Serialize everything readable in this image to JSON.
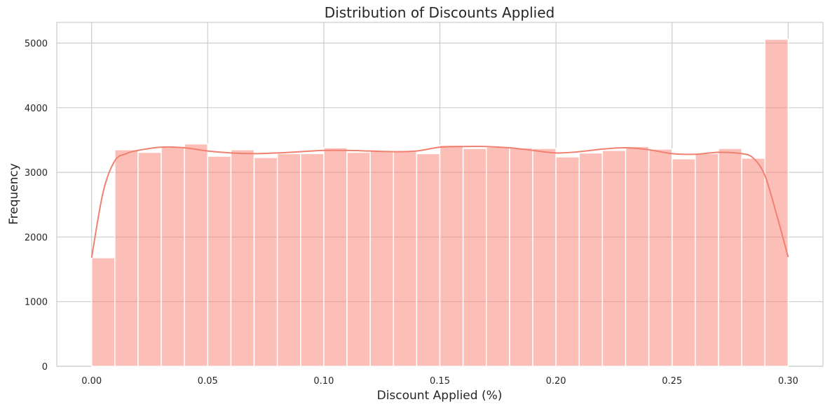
{
  "chart_data": {
    "type": "bar",
    "title": "Distribution of Discounts Applied",
    "xlabel": "Discount Applied (%)",
    "ylabel": "Frequency",
    "xlim": [
      -0.015,
      0.315
    ],
    "ylim": [
      0,
      5320
    ],
    "xticks": [
      0.0,
      0.05,
      0.1,
      0.15,
      0.2,
      0.25,
      0.3
    ],
    "xtick_labels": [
      "0.00",
      "0.05",
      "0.10",
      "0.15",
      "0.20",
      "0.25",
      "0.30"
    ],
    "yticks": [
      0,
      1000,
      2000,
      3000,
      4000,
      5000
    ],
    "ytick_labels": [
      "0",
      "1000",
      "2000",
      "3000",
      "4000",
      "5000"
    ],
    "bin_edges": [
      0.0,
      0.01,
      0.02,
      0.03,
      0.04,
      0.05,
      0.06,
      0.07,
      0.08,
      0.09,
      0.1,
      0.11,
      0.12,
      0.13,
      0.14,
      0.15,
      0.16,
      0.17,
      0.18,
      0.19,
      0.2,
      0.21,
      0.22,
      0.23,
      0.24,
      0.25,
      0.26,
      0.27,
      0.28,
      0.29,
      0.3
    ],
    "values": [
      1680,
      3350,
      3310,
      3390,
      3440,
      3250,
      3350,
      3230,
      3290,
      3290,
      3380,
      3310,
      3330,
      3320,
      3290,
      3420,
      3370,
      3390,
      3380,
      3370,
      3240,
      3300,
      3340,
      3400,
      3360,
      3210,
      3290,
      3370,
      3220,
      5060
    ],
    "kde": {
      "x": [
        0.0,
        0.005,
        0.01,
        0.015,
        0.02,
        0.03,
        0.04,
        0.05,
        0.06,
        0.07,
        0.08,
        0.09,
        0.1,
        0.11,
        0.12,
        0.13,
        0.14,
        0.15,
        0.16,
        0.17,
        0.18,
        0.19,
        0.2,
        0.21,
        0.22,
        0.23,
        0.24,
        0.25,
        0.26,
        0.27,
        0.28,
        0.285,
        0.29,
        0.295,
        0.3
      ],
      "y": [
        1680,
        2700,
        3180,
        3290,
        3340,
        3390,
        3380,
        3330,
        3300,
        3290,
        3300,
        3320,
        3340,
        3340,
        3330,
        3320,
        3330,
        3390,
        3400,
        3400,
        3380,
        3340,
        3300,
        3320,
        3360,
        3380,
        3350,
        3290,
        3280,
        3310,
        3290,
        3220,
        2950,
        2350,
        1690
      ]
    },
    "bar_color": "#fa8072",
    "bar_opacity": 0.5,
    "kde_color": "#f08070",
    "grid": true
  }
}
